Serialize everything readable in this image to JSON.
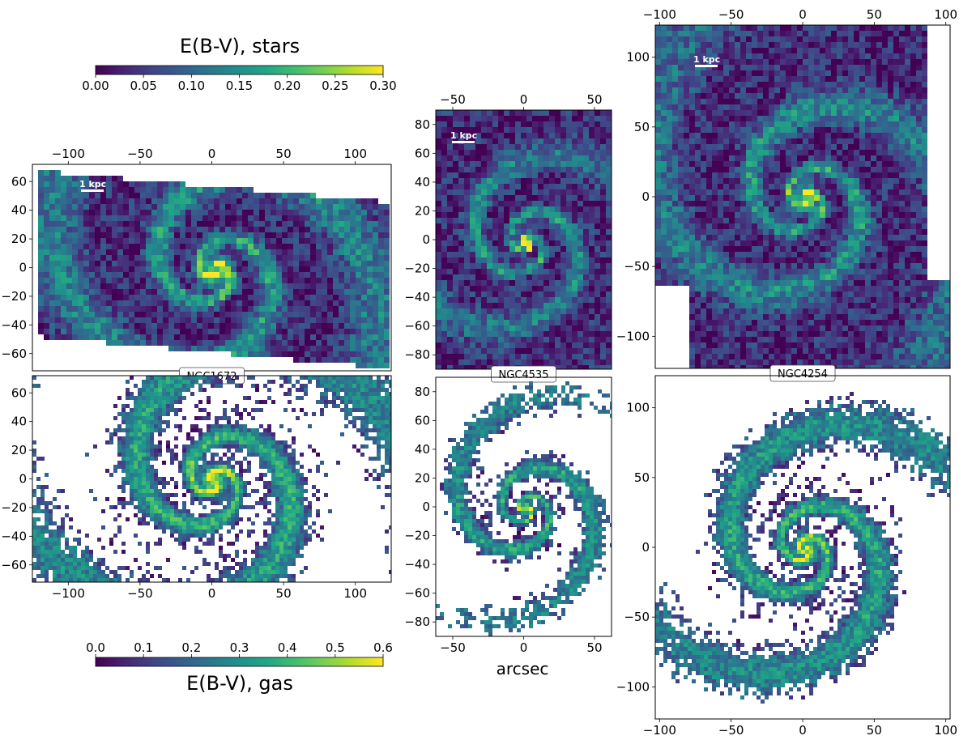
{
  "colorbars": {
    "stars": {
      "title": "E(B-V), stars",
      "range": [
        0.0,
        0.3
      ],
      "ticks": [
        "0.00",
        "0.05",
        "0.10",
        "0.15",
        "0.20",
        "0.25",
        "0.30"
      ]
    },
    "gas": {
      "title": "E(B-V), gas",
      "range": [
        0.0,
        0.6
      ],
      "ticks": [
        "0.0",
        "0.1",
        "0.2",
        "0.3",
        "0.4",
        "0.5",
        "0.6"
      ]
    }
  },
  "colormap": "viridis",
  "shared_xlabel": "arcsec",
  "scale_bar_label": "1 kpc",
  "chart_data": [
    {
      "type": "heatmap",
      "galaxy": "NGC1672",
      "map": "E(B-V), stars",
      "xlim": [
        -125,
        125
      ],
      "ylim": [
        -72,
        72
      ],
      "xticks": [
        -100,
        -50,
        0,
        50,
        100
      ],
      "yticks": [
        60,
        40,
        20,
        0,
        -20,
        -40,
        -60
      ],
      "x_axis_position": "top"
    },
    {
      "type": "heatmap",
      "galaxy": "NGC1672",
      "map": "E(B-V), gas",
      "xlim": [
        -125,
        125
      ],
      "ylim": [
        -72,
        72
      ],
      "xticks": [
        -100,
        -50,
        0,
        50,
        100
      ],
      "yticks": [
        60,
        40,
        20,
        0,
        -20,
        -40,
        -60
      ],
      "x_axis_position": "bottom"
    },
    {
      "type": "heatmap",
      "galaxy": "NGC4535",
      "map": "E(B-V), stars",
      "xlim": [
        -62,
        62
      ],
      "ylim": [
        -90,
        90
      ],
      "xticks": [
        -50,
        0,
        50
      ],
      "yticks": [
        80,
        60,
        40,
        20,
        0,
        -20,
        -40,
        -60,
        -80
      ],
      "x_axis_position": "top"
    },
    {
      "type": "heatmap",
      "galaxy": "NGC4535",
      "map": "E(B-V), gas",
      "xlim": [
        -62,
        62
      ],
      "ylim": [
        -90,
        90
      ],
      "xticks": [
        -50,
        0,
        50
      ],
      "yticks": [
        80,
        60,
        40,
        20,
        0,
        -20,
        -40,
        -60,
        -80
      ],
      "x_axis_position": "bottom"
    },
    {
      "type": "heatmap",
      "galaxy": "NGC4254",
      "map": "E(B-V), stars",
      "xlim": [
        -103,
        103
      ],
      "ylim": [
        -123,
        123
      ],
      "xticks": [
        -100,
        -50,
        0,
        50,
        100
      ],
      "yticks": [
        100,
        50,
        0,
        -50,
        -100
      ],
      "x_axis_position": "top"
    },
    {
      "type": "heatmap",
      "galaxy": "NGC4254",
      "map": "E(B-V), gas",
      "xlim": [
        -103,
        103
      ],
      "ylim": [
        -123,
        123
      ],
      "xticks": [
        -100,
        -50,
        0,
        50,
        100
      ],
      "yticks": [
        100,
        50,
        0,
        -50,
        -100
      ],
      "x_axis_position": "bottom"
    }
  ]
}
